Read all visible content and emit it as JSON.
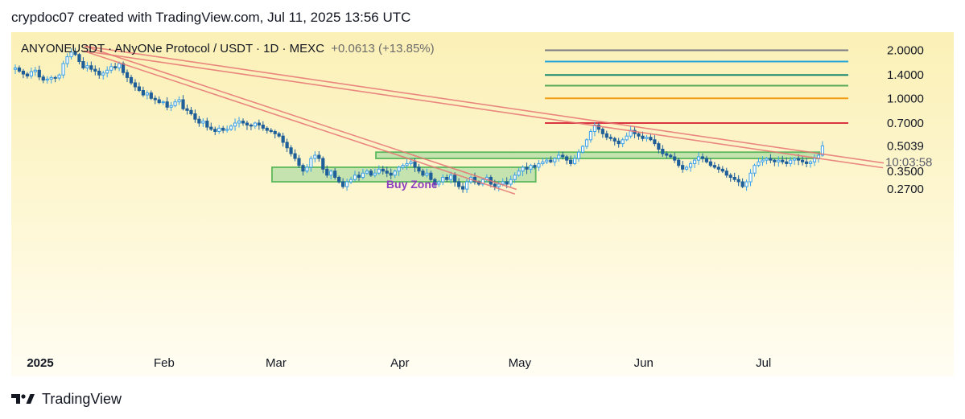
{
  "header": {
    "caption": "crypdoc07 created with TradingView.com, Jul 11, 2025 13:56 UTC"
  },
  "symbol": {
    "text": "ANYONEUSDT · ANyONe Protocol / USDT · 1D · MEXC",
    "change": "+0.0613 (+13.85%)"
  },
  "footer": {
    "brand": "TradingView",
    "logo_icon": "tradingview-logo-icon"
  },
  "colors": {
    "bull": "#3aa0e8",
    "bear": "#1f5f99",
    "zone_fill": "#9fd79a",
    "zone_stroke": "#5cb85c",
    "trend": "#e57373",
    "zone_label": "#8e3fc0"
  },
  "chart_data": {
    "type": "candlestick",
    "symbol": "ANYONEUSDT",
    "timeframe": "1D",
    "exchange": "MEXC",
    "x_ticks": [
      "2025",
      "Feb",
      "Mar",
      "Apr",
      "May",
      "Jun",
      "Jul"
    ],
    "price_scale": "log",
    "y_tick_labels": [
      "2.0000",
      "1.4000",
      "1.0000",
      "0.7000",
      "0.3500",
      "0.2700"
    ],
    "last_price": "0.5039",
    "countdown": "10:03:58",
    "horizontal_levels": [
      {
        "price": 2.0,
        "color": "#787b86"
      },
      {
        "price": 1.7,
        "color": "#26a7d9"
      },
      {
        "price": 1.4,
        "color": "#17876e"
      },
      {
        "price": 1.2,
        "color": "#57a957"
      },
      {
        "price": 1.0,
        "color": "#f29d12"
      },
      {
        "price": 0.7,
        "color": "#d9343f"
      }
    ],
    "zones": [
      {
        "label": "Buy Zone",
        "from": "2025-02-28",
        "to": "2025-05-05",
        "low": 0.3,
        "high": 0.37
      },
      {
        "label": "",
        "from": "2025-03-26",
        "to": "2025-07-15",
        "low": 0.42,
        "high": 0.46
      }
    ],
    "trendlines": [
      {
        "from": [
          "2025-01-12",
          2.05
        ],
        "to": [
          "2025-04-30",
          0.26
        ]
      },
      {
        "from": [
          "2025-01-12",
          2.05
        ],
        "to": [
          "2025-07-31",
          0.38
        ]
      }
    ],
    "daily_closes": [
      1.55,
      1.48,
      1.42,
      1.38,
      1.47,
      1.5,
      1.36,
      1.3,
      1.32,
      1.35,
      1.34,
      1.4,
      1.65,
      1.82,
      1.95,
      1.88,
      1.7,
      1.55,
      1.6,
      1.52,
      1.48,
      1.4,
      1.44,
      1.5,
      1.58,
      1.55,
      1.65,
      1.45,
      1.35,
      1.25,
      1.18,
      1.12,
      1.05,
      1.08,
      1.0,
      0.98,
      0.94,
      0.95,
      0.88,
      0.9,
      0.95,
      0.98,
      0.86,
      0.84,
      0.8,
      0.74,
      0.7,
      0.72,
      0.66,
      0.64,
      0.62,
      0.65,
      0.63,
      0.64,
      0.67,
      0.7,
      0.72,
      0.7,
      0.68,
      0.67,
      0.7,
      0.68,
      0.65,
      0.63,
      0.62,
      0.6,
      0.58,
      0.53,
      0.49,
      0.45,
      0.42,
      0.38,
      0.35,
      0.37,
      0.42,
      0.44,
      0.42,
      0.36,
      0.33,
      0.35,
      0.32,
      0.3,
      0.28,
      0.3,
      0.31,
      0.33,
      0.32,
      0.34,
      0.35,
      0.33,
      0.34,
      0.36,
      0.35,
      0.34,
      0.33,
      0.35,
      0.37,
      0.38,
      0.39,
      0.4,
      0.37,
      0.35,
      0.33,
      0.34,
      0.31,
      0.29,
      0.3,
      0.32,
      0.31,
      0.33,
      0.3,
      0.28,
      0.27,
      0.3,
      0.32,
      0.3,
      0.29,
      0.31,
      0.32,
      0.29,
      0.28,
      0.29,
      0.3,
      0.29,
      0.31,
      0.33,
      0.35,
      0.37,
      0.36,
      0.38,
      0.37,
      0.39,
      0.4,
      0.41,
      0.4,
      0.42,
      0.44,
      0.43,
      0.41,
      0.39,
      0.42,
      0.46,
      0.5,
      0.55,
      0.62,
      0.68,
      0.64,
      0.6,
      0.57,
      0.56,
      0.54,
      0.52,
      0.55,
      0.58,
      0.63,
      0.6,
      0.58,
      0.56,
      0.57,
      0.55,
      0.52,
      0.48,
      0.45,
      0.44,
      0.43,
      0.41,
      0.38,
      0.36,
      0.37,
      0.39,
      0.41,
      0.43,
      0.42,
      0.4,
      0.38,
      0.37,
      0.36,
      0.35,
      0.33,
      0.32,
      0.31,
      0.3,
      0.28,
      0.3,
      0.34,
      0.38,
      0.4,
      0.41,
      0.42,
      0.41,
      0.4,
      0.41,
      0.4,
      0.39,
      0.41,
      0.42,
      0.41,
      0.4,
      0.39,
      0.4,
      0.42,
      0.44,
      0.5039
    ]
  }
}
